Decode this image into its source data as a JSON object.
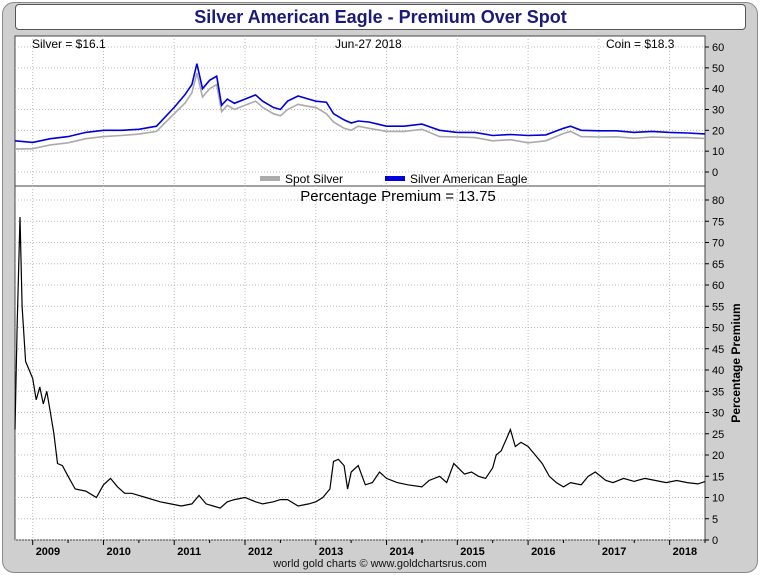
{
  "title": "Silver American Eagle - Premium Over Spot",
  "footer": "world gold charts © www.goldchartsrus.com",
  "top_panel": {
    "left_label": "Silver = $16.1",
    "date_label": "Jun-27  2018",
    "right_label": "Coin = $18.3",
    "legend": [
      "Spot Silver",
      "Silver American Eagle"
    ]
  },
  "bottom_panel": {
    "header": "Percentage Premium = 13.75",
    "ylabel": "Percentage Premium"
  },
  "colors": {
    "spot": "#aaaaaa",
    "coin": "#0000dd",
    "premium": "#000000",
    "title": "#1a1a7a"
  },
  "chart_data": [
    {
      "type": "line",
      "title": "",
      "ylim": [
        0,
        60
      ],
      "yticks": [
        0,
        10,
        20,
        30,
        40,
        50,
        60
      ],
      "xlim": [
        2008.75,
        2018.5
      ],
      "grid": true,
      "legend_position": "bottom-center",
      "x": [
        2008.75,
        2009.0,
        2009.25,
        2009.5,
        2009.75,
        2010.0,
        2010.25,
        2010.5,
        2010.75,
        2011.0,
        2011.15,
        2011.25,
        2011.32,
        2011.4,
        2011.5,
        2011.6,
        2011.67,
        2011.75,
        2011.85,
        2012.0,
        2012.15,
        2012.25,
        2012.4,
        2012.5,
        2012.6,
        2012.75,
        2012.9,
        2013.0,
        2013.15,
        2013.25,
        2013.4,
        2013.5,
        2013.6,
        2013.75,
        2014.0,
        2014.25,
        2014.5,
        2014.75,
        2015.0,
        2015.25,
        2015.5,
        2015.75,
        2016.0,
        2016.25,
        2016.5,
        2016.6,
        2016.75,
        2017.0,
        2017.25,
        2017.5,
        2017.75,
        2018.0,
        2018.25,
        2018.5
      ],
      "series": [
        {
          "name": "Spot Silver",
          "values": [
            11.0,
            11.2,
            13.0,
            14.0,
            16.0,
            17.0,
            17.5,
            18.2,
            19.5,
            28.0,
            33.0,
            38.0,
            47.5,
            36.0,
            40.0,
            42.0,
            29.0,
            32.0,
            30.0,
            32.0,
            34.0,
            31.0,
            28.0,
            27.0,
            30.0,
            32.5,
            31.5,
            31.0,
            28.0,
            24.0,
            21.0,
            20.0,
            22.0,
            21.0,
            19.5,
            19.5,
            20.5,
            17.0,
            16.8,
            16.5,
            15.0,
            15.5,
            14.0,
            15.0,
            18.5,
            19.5,
            17.0,
            16.8,
            16.9,
            16.2,
            16.8,
            16.5,
            16.5,
            16.1
          ]
        },
        {
          "name": "Silver American Eagle",
          "values": [
            15.0,
            14.2,
            16.0,
            17.0,
            19.0,
            20.0,
            20.0,
            20.5,
            22.0,
            31.0,
            37.0,
            42.0,
            52.0,
            40.0,
            44.0,
            46.0,
            32.0,
            35.0,
            33.0,
            35.0,
            37.0,
            34.0,
            31.0,
            30.0,
            34.0,
            36.5,
            35.0,
            34.0,
            33.5,
            28.0,
            25.0,
            23.5,
            24.5,
            24.0,
            22.0,
            22.0,
            23.0,
            20.0,
            19.0,
            19.0,
            17.5,
            18.0,
            17.5,
            17.8,
            21.0,
            22.0,
            20.0,
            19.8,
            19.8,
            19.0,
            19.5,
            19.0,
            18.7,
            18.3
          ]
        }
      ]
    },
    {
      "type": "line",
      "title": "Percentage Premium = 13.75",
      "ylabel": "Percentage Premium",
      "ylim": [
        0,
        80
      ],
      "yticks": [
        0,
        5,
        10,
        15,
        20,
        25,
        30,
        35,
        40,
        45,
        50,
        55,
        60,
        65,
        70,
        75,
        80
      ],
      "xlim": [
        2008.75,
        2018.5
      ],
      "xticks": [
        2009,
        2010,
        2011,
        2012,
        2013,
        2014,
        2015,
        2016,
        2017,
        2018
      ],
      "grid": true,
      "x": [
        2008.75,
        2008.78,
        2008.82,
        2008.85,
        2008.9,
        2008.95,
        2009.0,
        2009.05,
        2009.1,
        2009.15,
        2009.2,
        2009.25,
        2009.3,
        2009.35,
        2009.42,
        2009.5,
        2009.6,
        2009.75,
        2009.9,
        2010.0,
        2010.1,
        2010.2,
        2010.3,
        2010.4,
        2010.5,
        2010.6,
        2010.8,
        2010.95,
        2011.1,
        2011.25,
        2011.35,
        2011.45,
        2011.55,
        2011.65,
        2011.75,
        2011.85,
        2012.0,
        2012.15,
        2012.25,
        2012.4,
        2012.5,
        2012.6,
        2012.75,
        2012.9,
        2013.0,
        2013.1,
        2013.2,
        2013.25,
        2013.32,
        2013.4,
        2013.45,
        2013.5,
        2013.6,
        2013.7,
        2013.8,
        2013.9,
        2014.0,
        2014.15,
        2014.3,
        2014.5,
        2014.6,
        2014.75,
        2014.85,
        2014.95,
        2015.1,
        2015.2,
        2015.3,
        2015.4,
        2015.5,
        2015.55,
        2015.62,
        2015.7,
        2015.75,
        2015.82,
        2015.9,
        2016.0,
        2016.1,
        2016.2,
        2016.3,
        2016.4,
        2016.5,
        2016.6,
        2016.75,
        2016.85,
        2016.95,
        2017.1,
        2017.2,
        2017.35,
        2017.5,
        2017.65,
        2017.8,
        2017.95,
        2018.1,
        2018.25,
        2018.4,
        2018.5
      ],
      "series": [
        {
          "name": "",
          "values": [
            26.0,
            50.0,
            76.0,
            55.0,
            42.0,
            40.0,
            38.0,
            33.0,
            36.0,
            32.0,
            35.0,
            30.0,
            25.0,
            18.0,
            17.5,
            15.0,
            12.0,
            11.5,
            10.0,
            13.0,
            14.5,
            12.5,
            11.0,
            11.0,
            10.5,
            10.0,
            9.0,
            8.5,
            8.0,
            8.5,
            10.5,
            8.5,
            8.0,
            7.5,
            9.0,
            9.5,
            10.0,
            9.0,
            8.5,
            9.0,
            9.5,
            9.5,
            8.0,
            8.5,
            9.0,
            10.0,
            12.0,
            18.5,
            19.0,
            17.5,
            12.0,
            16.0,
            17.5,
            13.0,
            13.5,
            16.0,
            14.5,
            13.5,
            13.0,
            12.5,
            14.0,
            15.0,
            13.5,
            18.0,
            15.5,
            16.0,
            15.0,
            14.5,
            17.0,
            20.0,
            21.0,
            24.0,
            26.0,
            22.0,
            23.0,
            22.0,
            20.0,
            18.0,
            15.0,
            13.5,
            12.5,
            13.5,
            13.0,
            15.0,
            16.0,
            14.0,
            13.5,
            14.5,
            13.8,
            14.5,
            14.0,
            13.5,
            14.0,
            13.5,
            13.2,
            13.75
          ]
        }
      ]
    }
  ]
}
